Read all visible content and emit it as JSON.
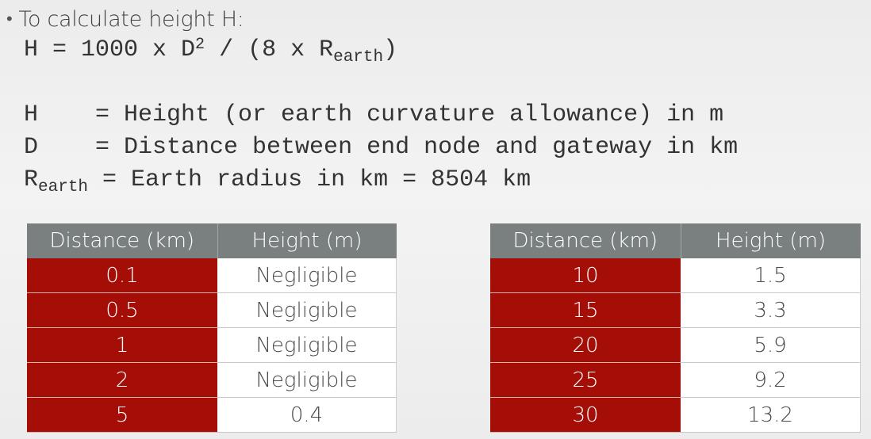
{
  "intro": {
    "bullet": "•",
    "text": "To calculate height H:"
  },
  "formula": {
    "lhs": "H = 1000 x D",
    "sup": "2",
    "mid": " / (8 x R",
    "sub": "earth",
    "end": ")"
  },
  "definitions": {
    "h": "H    = Height (or earth curvature allowance) in m",
    "d": "D    = Distance between end node and gateway in km",
    "r_symbol": "R",
    "r_sub": "earth",
    "r_text": " = Earth radius in km = 8504 km"
  },
  "tables": [
    {
      "headers": [
        "Distance (km)",
        "Height (m)"
      ],
      "rows": [
        {
          "distance": "0.1",
          "height": "Negligible"
        },
        {
          "distance": "0.5",
          "height": "Negligible"
        },
        {
          "distance": "1",
          "height": "Negligible"
        },
        {
          "distance": "2",
          "height": "Negligible"
        },
        {
          "distance": "5",
          "height": "0.4"
        }
      ]
    },
    {
      "headers": [
        "Distance (km)",
        "Height (m)"
      ],
      "rows": [
        {
          "distance": "10",
          "height": "1.5"
        },
        {
          "distance": "15",
          "height": "3.3"
        },
        {
          "distance": "20",
          "height": "5.9"
        },
        {
          "distance": "25",
          "height": "9.2"
        },
        {
          "distance": "30",
          "height": "13.2"
        }
      ]
    }
  ],
  "colors": {
    "distance_cell": "#a40e06",
    "header": "#7a8080",
    "background": "#efefef"
  }
}
